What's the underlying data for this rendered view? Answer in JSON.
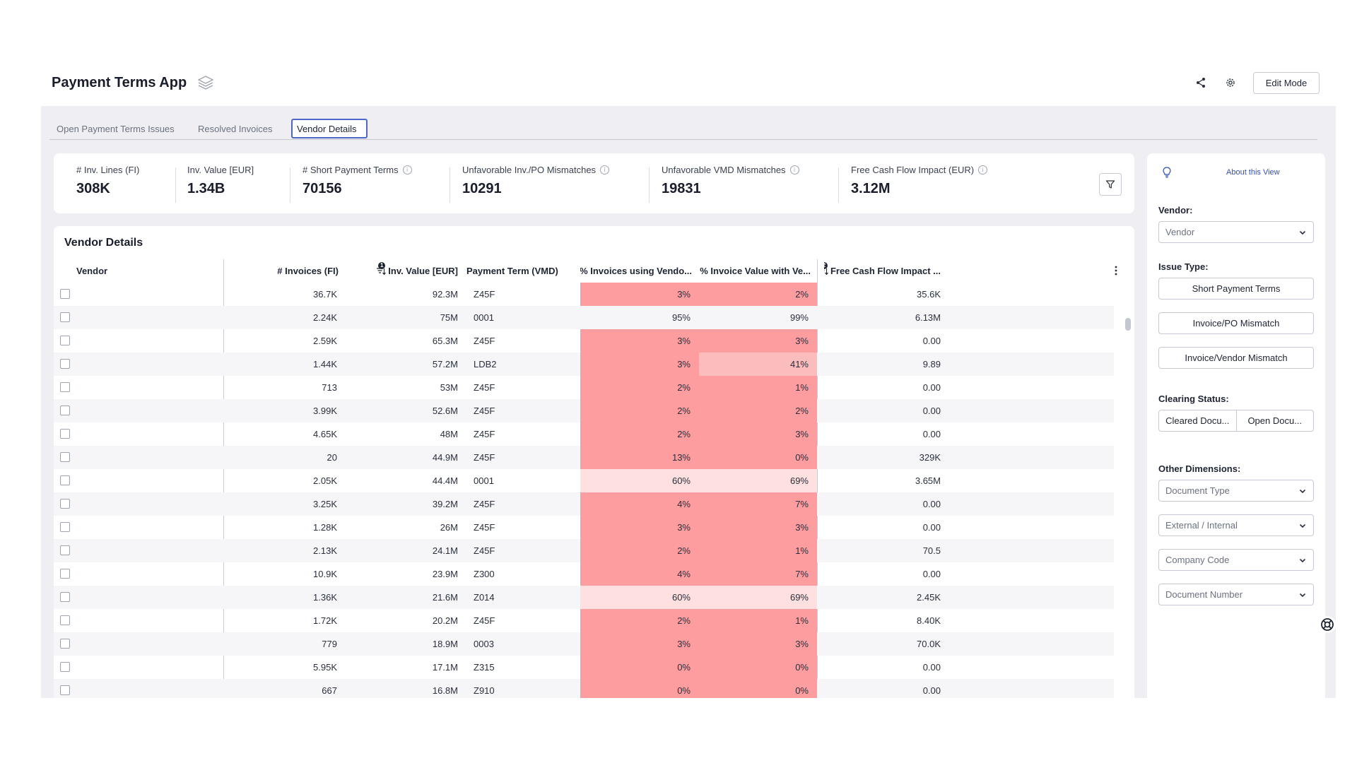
{
  "app": {
    "title": "Payment Terms App",
    "edit_mode_label": "Edit Mode"
  },
  "tabs": [
    {
      "label": "Open Payment Terms Issues"
    },
    {
      "label": "Resolved Invoices"
    },
    {
      "label": "Vendor Details",
      "active": true
    }
  ],
  "kpis": [
    {
      "label": "# Inv. Lines (FI)",
      "value": "308K",
      "info": false
    },
    {
      "label": "Inv. Value [EUR]",
      "value": "1.34B",
      "info": false
    },
    {
      "label": "# Short Payment Terms",
      "value": "70156",
      "info": true
    },
    {
      "label": "Unfavorable Inv./PO Mismatches",
      "value": "10291",
      "info": true
    },
    {
      "label": "Unfavorable VMD Mismatches",
      "value": "19831",
      "info": true
    },
    {
      "label": "Free Cash Flow Impact (EUR)",
      "value": "3.12M",
      "info": true
    }
  ],
  "table": {
    "title": "Vendor Details",
    "columns": {
      "vendor": "Vendor",
      "invoices": "# Invoices (FI)",
      "inv_value": "Inv. Value [EUR]",
      "payment_term": "Payment Term (VMD)",
      "pct_invoices": "% Invoices using Vendo...",
      "pct_value": "% Invoice Value with Ve...",
      "fcf": "Free Cash Flow Impact ..."
    },
    "sort_badges": {
      "inv_value": "1",
      "fcf": "2"
    },
    "heat_colors": {
      "strong": "#fd9d9f",
      "light": "#fbbcbd",
      "pale": "#fde0df"
    },
    "rows": [
      {
        "invoices": "36.7K",
        "inv_value": "92.3M",
        "term": "Z45F",
        "pct_inv": "3%",
        "pct_val": "2%",
        "fcf": "35.6K",
        "h1": "strong",
        "h2": "strong"
      },
      {
        "invoices": "2.24K",
        "inv_value": "75M",
        "term": "0001",
        "pct_inv": "95%",
        "pct_val": "99%",
        "fcf": "6.13M",
        "h1": "none",
        "h2": "none"
      },
      {
        "invoices": "2.59K",
        "inv_value": "65.3M",
        "term": "Z45F",
        "pct_inv": "3%",
        "pct_val": "3%",
        "fcf": "0.00",
        "h1": "strong",
        "h2": "strong"
      },
      {
        "invoices": "1.44K",
        "inv_value": "57.2M",
        "term": "LDB2",
        "pct_inv": "3%",
        "pct_val": "41%",
        "fcf": "9.89",
        "h1": "strong",
        "h2": "light"
      },
      {
        "invoices": "713",
        "inv_value": "53M",
        "term": "Z45F",
        "pct_inv": "2%",
        "pct_val": "1%",
        "fcf": "0.00",
        "h1": "strong",
        "h2": "strong"
      },
      {
        "invoices": "3.99K",
        "inv_value": "52.6M",
        "term": "Z45F",
        "pct_inv": "2%",
        "pct_val": "2%",
        "fcf": "0.00",
        "h1": "strong",
        "h2": "strong"
      },
      {
        "invoices": "4.65K",
        "inv_value": "48M",
        "term": "Z45F",
        "pct_inv": "2%",
        "pct_val": "3%",
        "fcf": "0.00",
        "h1": "strong",
        "h2": "strong"
      },
      {
        "invoices": "20",
        "inv_value": "44.9M",
        "term": "Z45F",
        "pct_inv": "13%",
        "pct_val": "0%",
        "fcf": "329K",
        "h1": "strong",
        "h2": "strong"
      },
      {
        "invoices": "2.05K",
        "inv_value": "44.4M",
        "term": "0001",
        "pct_inv": "60%",
        "pct_val": "69%",
        "fcf": "3.65M",
        "h1": "pale",
        "h2": "pale"
      },
      {
        "invoices": "3.25K",
        "inv_value": "39.2M",
        "term": "Z45F",
        "pct_inv": "4%",
        "pct_val": "7%",
        "fcf": "0.00",
        "h1": "strong",
        "h2": "strong"
      },
      {
        "invoices": "1.28K",
        "inv_value": "26M",
        "term": "Z45F",
        "pct_inv": "3%",
        "pct_val": "3%",
        "fcf": "0.00",
        "h1": "strong",
        "h2": "strong"
      },
      {
        "invoices": "2.13K",
        "inv_value": "24.1M",
        "term": "Z45F",
        "pct_inv": "2%",
        "pct_val": "1%",
        "fcf": "70.5",
        "h1": "strong",
        "h2": "strong"
      },
      {
        "invoices": "10.9K",
        "inv_value": "23.9M",
        "term": "Z300",
        "pct_inv": "4%",
        "pct_val": "7%",
        "fcf": "0.00",
        "h1": "strong",
        "h2": "strong"
      },
      {
        "invoices": "1.36K",
        "inv_value": "21.6M",
        "term": "Z014",
        "pct_inv": "60%",
        "pct_val": "69%",
        "fcf": "2.45K",
        "h1": "pale",
        "h2": "pale"
      },
      {
        "invoices": "1.72K",
        "inv_value": "20.2M",
        "term": "Z45F",
        "pct_inv": "2%",
        "pct_val": "1%",
        "fcf": "8.40K",
        "h1": "strong",
        "h2": "strong"
      },
      {
        "invoices": "779",
        "inv_value": "18.9M",
        "term": "0003",
        "pct_inv": "3%",
        "pct_val": "3%",
        "fcf": "70.0K",
        "h1": "strong",
        "h2": "strong"
      },
      {
        "invoices": "5.95K",
        "inv_value": "17.1M",
        "term": "Z315",
        "pct_inv": "0%",
        "pct_val": "0%",
        "fcf": "0.00",
        "h1": "strong",
        "h2": "strong"
      },
      {
        "invoices": "667",
        "inv_value": "16.8M",
        "term": "Z910",
        "pct_inv": "0%",
        "pct_val": "0%",
        "fcf": "0.00",
        "h1": "strong",
        "h2": "strong"
      }
    ]
  },
  "side_panel": {
    "about_link": "About this View",
    "vendor_label": "Vendor:",
    "vendor_placeholder": "Vendor",
    "issue_type_label": "Issue Type:",
    "issue_buttons": [
      "Short Payment Terms",
      "Invoice/PO Mismatch",
      "Invoice/Vendor Mismatch"
    ],
    "clearing_label": "Clearing Status:",
    "clearing_options": [
      "Cleared Docu...",
      "Open Docu..."
    ],
    "other_label": "Other Dimensions:",
    "other_dropdowns": [
      "Document Type",
      "External / Internal",
      "Company Code",
      "Document Number"
    ]
  },
  "icons": {
    "share": "share-icon",
    "settings": "gear-icon",
    "filter": "filter-icon",
    "lightbulb": "lightbulb-icon",
    "help": "lifebuoy-icon"
  }
}
